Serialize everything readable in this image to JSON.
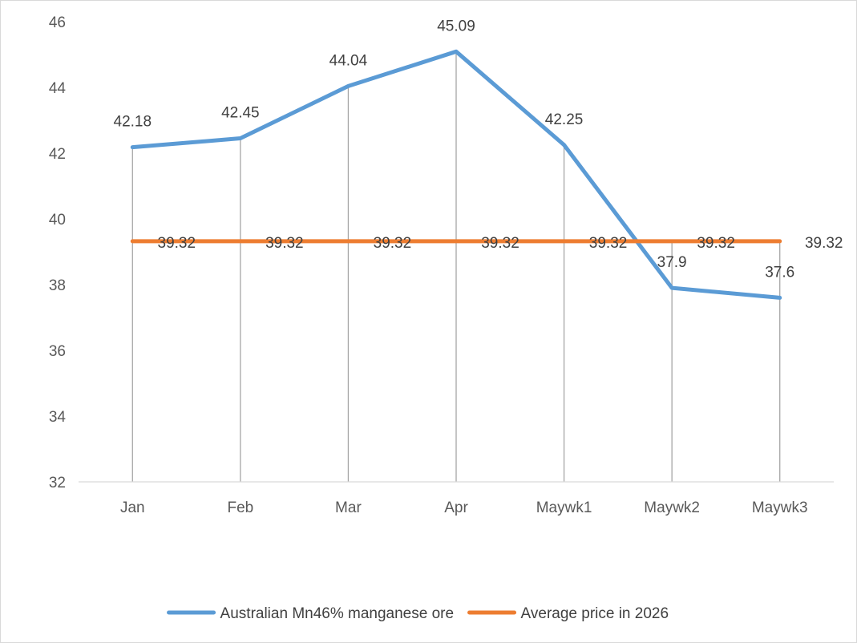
{
  "chart_data": {
    "type": "line",
    "categories": [
      "Jan",
      "Feb",
      "Mar",
      "Apr",
      "Maywk1",
      "Maywk2",
      "Maywk3"
    ],
    "series": [
      {
        "name": "Australian Mn46% manganese ore",
        "values": [
          42.18,
          42.45,
          44.04,
          45.09,
          42.25,
          37.9,
          37.6
        ],
        "labels": [
          "42.18",
          "42.45",
          "44.04",
          "45.09",
          "42.25",
          "37.9",
          "37.6"
        ],
        "color": "#5b9bd5"
      },
      {
        "name": "Average price in 2026",
        "values": [
          39.32,
          39.32,
          39.32,
          39.32,
          39.32,
          39.32,
          39.32
        ],
        "labels": [
          "39.32",
          "39.32",
          "39.32",
          "39.32",
          "39.32",
          "39.32",
          "39.32"
        ],
        "color": "#ed7d31"
      }
    ],
    "ylim": [
      32,
      46
    ],
    "yticks": [
      "32",
      "34",
      "36",
      "38",
      "40",
      "42",
      "44",
      "46"
    ],
    "drop_lines": true,
    "grid": false,
    "legend_position": "bottom",
    "title": "",
    "xlabel": "",
    "ylabel": ""
  }
}
